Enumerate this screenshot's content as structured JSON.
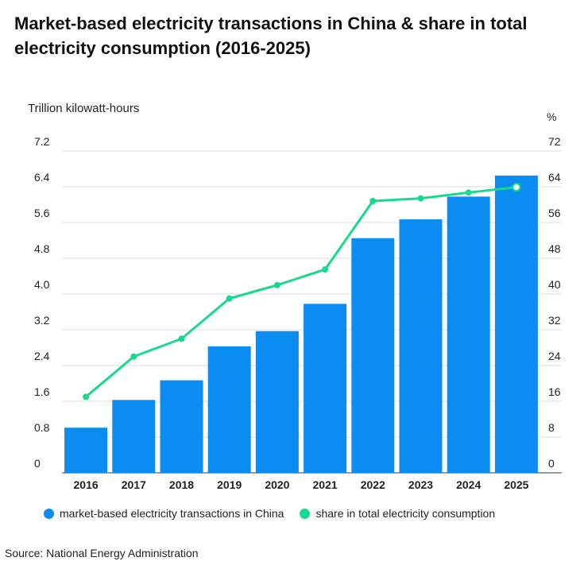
{
  "chart_data": {
    "type": "bar",
    "title": "Market-based electricity transactions in China & share in total electricity consumption (2016-2025)",
    "ylabel_left": "Trillion kilowatt-hours",
    "ylabel_right": "%",
    "categories": [
      "2016",
      "2017",
      "2018",
      "2019",
      "2020",
      "2021",
      "2022",
      "2023",
      "2024",
      "2025"
    ],
    "y_left_ticks": [
      "0",
      "0.8",
      "1.6",
      "2.4",
      "3.2",
      "4.0",
      "4.8",
      "5.6",
      "6.4",
      "7.2"
    ],
    "y_right_ticks": [
      "0",
      "8",
      "16",
      "24",
      "32",
      "40",
      "48",
      "56",
      "64",
      "72"
    ],
    "ylim_left": [
      0,
      7.2
    ],
    "ylim_right": [
      0,
      72
    ],
    "series": [
      {
        "name": "market-based electricity transactions in China",
        "kind": "bar",
        "axis": "left",
        "color": "#0a8cf0",
        "values": [
          1.01,
          1.63,
          2.07,
          2.83,
          3.17,
          3.78,
          5.25,
          5.67,
          6.18,
          6.65
        ]
      },
      {
        "name": "share in total electricity consumption",
        "kind": "line",
        "axis": "right",
        "color": "#19d98c",
        "values": [
          17,
          26,
          30,
          39,
          42,
          45.5,
          60.8,
          61.4,
          62.7,
          63.9
        ]
      }
    ],
    "grid": true,
    "legend_position": "bottom",
    "source": "Source: National Energy Administration"
  }
}
